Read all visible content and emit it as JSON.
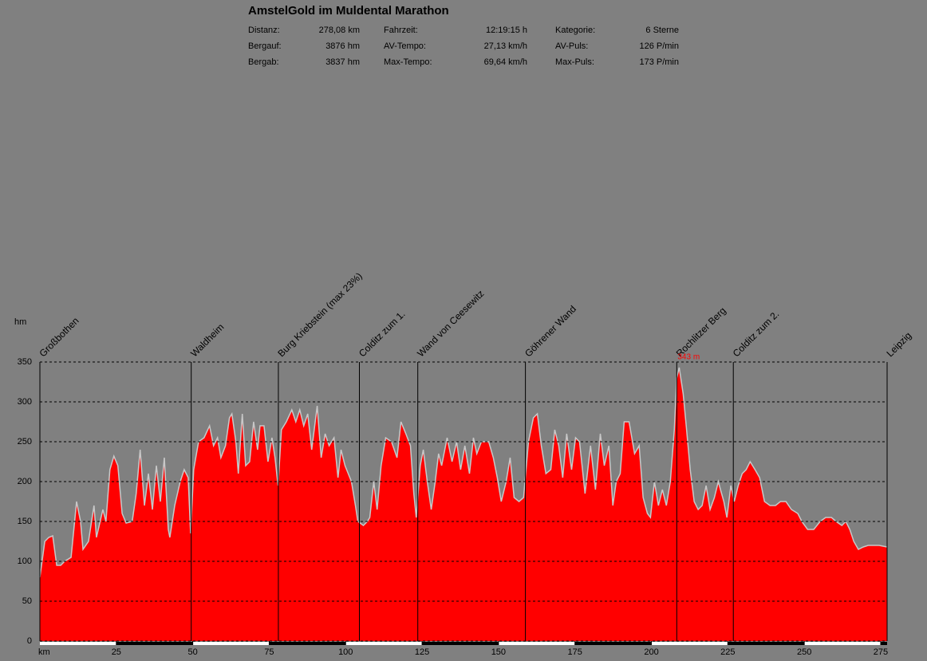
{
  "chart_data": {
    "type": "area",
    "title": "AmstelGold im Muldental Marathon",
    "stats": [
      {
        "label": "Distanz:",
        "value": "278,08 km"
      },
      {
        "label": "Bergauf:",
        "value": "3876 hm"
      },
      {
        "label": "Bergab:",
        "value": "3837 hm"
      },
      {
        "label": "Fahrzeit:",
        "value": "12:19:15 h"
      },
      {
        "label": "AV-Tempo:",
        "value": "27,13 km/h"
      },
      {
        "label": "Max-Tempo:",
        "value": "69,64 km/h"
      },
      {
        "label": "Kategorie:",
        "value": "6 Sterne"
      },
      {
        "label": "AV-Puls:",
        "value": "126 P/min"
      },
      {
        "label": "Max-Puls:",
        "value": "173 P/min"
      }
    ],
    "x_label": "km",
    "y_label": "hm",
    "color": "#ff0000",
    "line_color": "#c8c8c8",
    "xlim": [
      0,
      277.1
    ],
    "ylim": [
      0,
      350
    ],
    "xticks": [
      25,
      50,
      75,
      100,
      125,
      150,
      175,
      200,
      225,
      250,
      275
    ],
    "yticks": [
      0,
      50,
      100,
      150,
      200,
      250,
      300,
      350
    ],
    "grid": true,
    "waypoints": [
      {
        "label": "Großbothen",
        "km": 0
      },
      {
        "label": "Waldheim",
        "km": 49.5
      },
      {
        "label": "Burg Kriebstein (max 23%)",
        "km": 78.0
      },
      {
        "label": "Colditz zum 1.",
        "km": 104.5
      },
      {
        "label": "Wand von Ceesewitz",
        "km": 123.6
      },
      {
        "label": "Göhrener Wand",
        "km": 158.8
      },
      {
        "label": "Rochlitzer Berg",
        "km": 208.3
      },
      {
        "label": "Colditz zum 2.",
        "km": 226.8
      },
      {
        "label": "Leipzig",
        "km": 277.1
      }
    ],
    "peak": {
      "label": "343 m",
      "km": 209.1,
      "value": 343
    },
    "x": [
      0,
      1.6,
      2.9,
      4.2,
      5.5,
      6.8,
      8.1,
      10.2,
      12.0,
      13.3,
      14.1,
      15.9,
      17.7,
      18.5,
      20.6,
      21.6,
      22.9,
      24.2,
      25.5,
      26.9,
      28.2,
      30.2,
      31.5,
      32.8,
      34.2,
      35.5,
      36.8,
      38.1,
      39.4,
      40.7,
      42.0,
      42.5,
      44.1,
      45.9,
      47.2,
      48.5,
      49.3,
      50.3,
      51.9,
      53.7,
      55.5,
      56.8,
      58.1,
      59.2,
      60.7,
      62.0,
      62.8,
      64.1,
      64.9,
      66.2,
      67.3,
      68.6,
      69.9,
      71.2,
      72.0,
      73.3,
      74.6,
      75.9,
      76.9,
      77.9,
      79.0,
      80.6,
      82.4,
      83.7,
      85.0,
      86.3,
      87.6,
      88.9,
      90.7,
      92.0,
      93.3,
      94.6,
      96.2,
      97.5,
      98.5,
      99.8,
      101.9,
      103.2,
      104.0,
      105.8,
      107.1,
      107.9,
      109.2,
      110.3,
      111.6,
      113.1,
      115.0,
      116.8,
      118.1,
      119.7,
      121.2,
      122.3,
      123.1,
      124.4,
      125.4,
      126.7,
      128.0,
      129.3,
      130.4,
      131.4,
      133.2,
      134.8,
      136.3,
      137.6,
      139.0,
      140.5,
      141.8,
      142.9,
      144.4,
      146.8,
      148.3,
      149.6,
      150.9,
      152.5,
      153.8,
      155.1,
      156.7,
      158.2,
      159.8,
      161.4,
      162.7,
      164.0,
      165.5,
      167.1,
      168.4,
      169.7,
      171.0,
      172.3,
      173.9,
      175.2,
      176.5,
      178.3,
      180.1,
      181.7,
      183.3,
      184.6,
      186.1,
      187.4,
      188.5,
      189.8,
      191.1,
      192.7,
      194.5,
      196.0,
      197.3,
      198.7,
      199.7,
      201.0,
      202.3,
      203.6,
      204.9,
      206.2,
      207.5,
      208.3,
      209.1,
      210.4,
      211.4,
      212.7,
      214.0,
      215.3,
      216.6,
      217.9,
      219.2,
      220.6,
      221.9,
      222.6,
      223.7,
      224.7,
      226.0,
      227.1,
      228.4,
      229.7,
      231.0,
      232.3,
      233.9,
      235.4,
      237.0,
      238.8,
      240.6,
      242.2,
      244.0,
      245.8,
      247.9,
      249.2,
      251.1,
      253.1,
      255.2,
      257.0,
      258.9,
      260.4,
      262.3,
      263.6,
      264.9,
      266.2,
      267.7,
      269.3,
      270.9,
      272.7,
      274.5,
      277.1
    ],
    "values": [
      80,
      125,
      130,
      132,
      95,
      95,
      100,
      105,
      175,
      150,
      115,
      125,
      170,
      130,
      165,
      150,
      215,
      232,
      220,
      160,
      148,
      150,
      185,
      240,
      170,
      210,
      165,
      220,
      175,
      230,
      140,
      130,
      170,
      200,
      215,
      205,
      135,
      215,
      250,
      255,
      270,
      245,
      255,
      230,
      245,
      280,
      285,
      250,
      210,
      285,
      220,
      225,
      275,
      240,
      270,
      270,
      225,
      255,
      230,
      195,
      265,
      275,
      290,
      275,
      290,
      270,
      285,
      240,
      295,
      230,
      260,
      245,
      255,
      205,
      240,
      220,
      200,
      170,
      150,
      145,
      150,
      155,
      200,
      165,
      220,
      255,
      250,
      230,
      275,
      260,
      245,
      185,
      155,
      220,
      240,
      200,
      165,
      200,
      235,
      220,
      255,
      225,
      250,
      215,
      245,
      210,
      255,
      235,
      250,
      250,
      230,
      205,
      175,
      200,
      230,
      180,
      175,
      180,
      250,
      280,
      285,
      245,
      210,
      215,
      265,
      245,
      205,
      260,
      215,
      255,
      250,
      185,
      245,
      190,
      260,
      220,
      245,
      170,
      200,
      210,
      275,
      275,
      235,
      245,
      180,
      160,
      155,
      200,
      170,
      190,
      170,
      200,
      265,
      330,
      343,
      310,
      270,
      215,
      175,
      165,
      170,
      195,
      165,
      180,
      200,
      190,
      175,
      155,
      195,
      175,
      195,
      210,
      215,
      225,
      215,
      205,
      175,
      170,
      170,
      175,
      175,
      165,
      160,
      150,
      140,
      140,
      150,
      155,
      155,
      150,
      145,
      150,
      140,
      125,
      115,
      118,
      120,
      120,
      120,
      118
    ]
  }
}
